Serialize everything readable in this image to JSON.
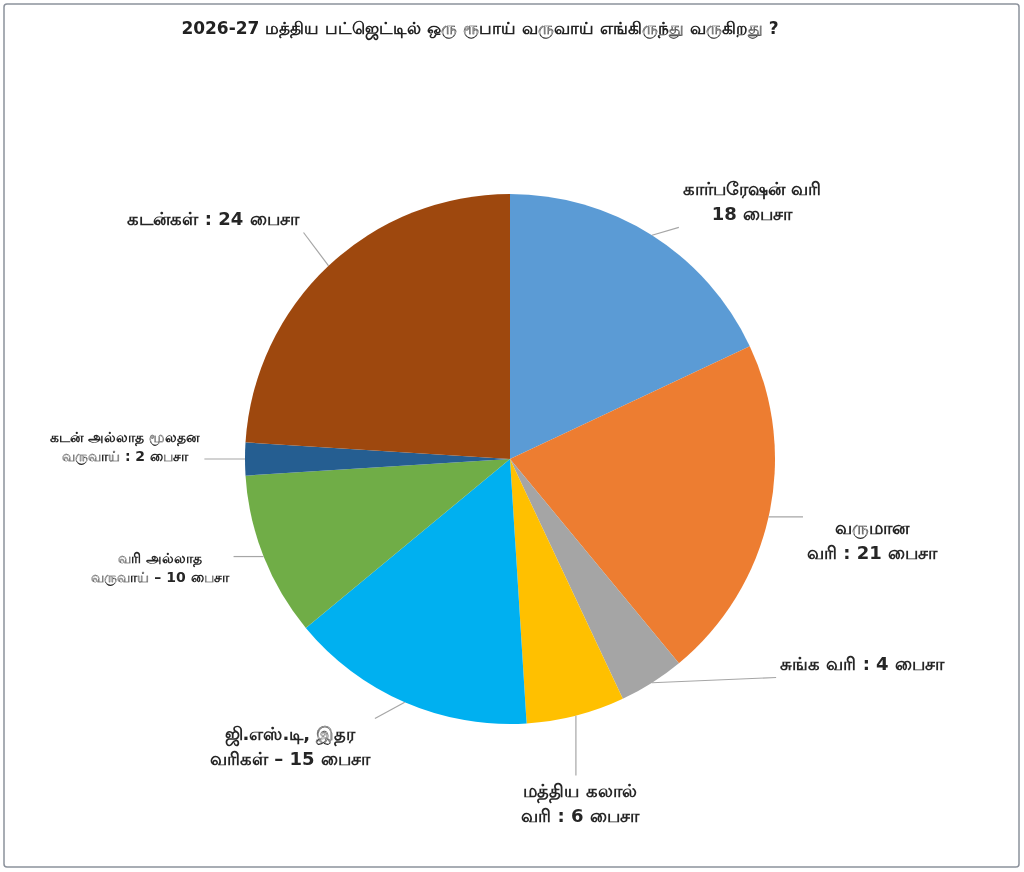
{
  "chart_data": {
    "type": "pie",
    "title": "2026-27 மத்திய பட்ஜெட்டில் ஒரு ரூபாய் வருவாய் எங்கிருந்து வருகிறது ?",
    "categories": [
      "கார்பரேஷன் வரி\n18 பைசா",
      "வருமான\nவரி : 21 பைசா",
      "சுங்க வரி : 4 பைசா",
      "மத்திய கலால்\nவரி : 6 பைசா",
      "ஜி.எஸ்.டி, இதர\nவரிகள் – 15 பைசா",
      "வரி அல்லாத\nவருவாய் – 10 பைசா",
      "கடன் அல்லாத மூலதன\nவருவாய் : 2 பைசா",
      "கடன்கள் : 24 பைசா"
    ],
    "values": [
      18,
      21,
      4,
      6,
      15,
      10,
      2,
      24
    ],
    "colors": [
      "#5b9bd5",
      "#ed7d31",
      "#a5a5a5",
      "#ffc000",
      "#00b0f0",
      "#70ad47",
      "#255e91",
      "#9e480e"
    ]
  }
}
